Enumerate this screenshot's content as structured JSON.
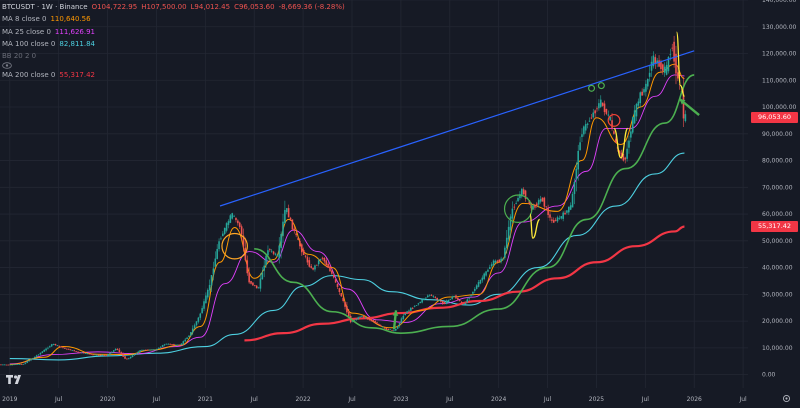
{
  "header": {
    "symbol": "BTCUSDT · 1W · Binance",
    "ohlc": {
      "open": "O104,722.95",
      "high": "H107,500.00",
      "low": "L94,012.45",
      "close": "C96,053.60",
      "change": "-8,669.36 (-8.28%)"
    }
  },
  "indicators": [
    {
      "name": "MA 8 close 0",
      "value": "110,640.56",
      "color": "#ff9800"
    },
    {
      "name": "MA 25 close 0",
      "value": "111,626.91",
      "color": "#e040fb"
    },
    {
      "name": "MA 100 close 0",
      "value": "82,811.84",
      "color": "#4dd0e1"
    },
    {
      "name": "MA 200 close 0",
      "value": "55,317.42",
      "color": "#f23645"
    }
  ],
  "bb_indicator": {
    "name": "BB 20 2 0"
  },
  "price_tags": [
    {
      "label": "96,053.60",
      "value": 96053.6,
      "color": "#f23645"
    },
    {
      "label": "55,317.42",
      "value": 55317.42,
      "color": "#f23645"
    }
  ],
  "colors": {
    "up": "#26a69a",
    "down": "#ef5350",
    "trendline": "#2962ff",
    "arc": "#4caf50",
    "circle_orange": "#ffa726",
    "circle_yellow": "#ffeb3b",
    "circle_red": "#f44336",
    "arrow": "#4caf50",
    "ma8": "#ff9800",
    "ma25": "#e040fb",
    "ma100": "#4dd0e1",
    "ma200": "#f23645"
  },
  "icons": {
    "logo": "tradingview-logo-icon",
    "settings": "gear-icon",
    "visibility": "eye-icon"
  },
  "chart_data": {
    "type": "candlestick",
    "title": "BTCUSDT · 1W · Binance",
    "ylim": [
      -5000,
      140000
    ],
    "xlim": [
      2018.9,
      2026.55
    ],
    "y_ticks": [
      {
        "value": 0,
        "label": "0.00"
      },
      {
        "value": 10000,
        "label": "10,000.00"
      },
      {
        "value": 20000,
        "label": "20,000.00"
      },
      {
        "value": 30000,
        "label": "30,000.00"
      },
      {
        "value": 40000,
        "label": "40,000.00"
      },
      {
        "value": 50000,
        "label": "50,000.00"
      },
      {
        "value": 60000,
        "label": "60,000.00"
      },
      {
        "value": 70000,
        "label": "70,000.00"
      },
      {
        "value": 80000,
        "label": "80,000.00"
      },
      {
        "value": 90000,
        "label": "90,000.00"
      },
      {
        "value": 100000,
        "label": "100,000.00"
      },
      {
        "value": 110000,
        "label": "110,000.00"
      },
      {
        "value": 120000,
        "label": "120,000.00"
      },
      {
        "value": 130000,
        "label": "130,000.00"
      },
      {
        "value": 140000,
        "label": "140,000.00"
      }
    ],
    "x_ticks": [
      {
        "t": 2019.0,
        "label": "2019"
      },
      {
        "t": 2019.5,
        "label": "Jul"
      },
      {
        "t": 2020.0,
        "label": "2020"
      },
      {
        "t": 2020.5,
        "label": "Jul"
      },
      {
        "t": 2021.0,
        "label": "2021"
      },
      {
        "t": 2021.5,
        "label": "Jul"
      },
      {
        "t": 2022.0,
        "label": "2022"
      },
      {
        "t": 2022.5,
        "label": "Jul"
      },
      {
        "t": 2023.0,
        "label": "2023"
      },
      {
        "t": 2023.5,
        "label": "Jul"
      },
      {
        "t": 2024.0,
        "label": "2024"
      },
      {
        "t": 2024.5,
        "label": "Jul"
      },
      {
        "t": 2025.0,
        "label": "2025"
      },
      {
        "t": 2025.5,
        "label": "Jul"
      },
      {
        "t": 2026.0,
        "label": "2026"
      },
      {
        "t": 2026.5,
        "label": "Jul"
      }
    ],
    "price_path": [
      [
        2018.9,
        3800
      ],
      [
        2019.0,
        3700
      ],
      [
        2019.15,
        4000
      ],
      [
        2019.3,
        7500
      ],
      [
        2019.45,
        11500
      ],
      [
        2019.55,
        10000
      ],
      [
        2019.7,
        8500
      ],
      [
        2019.85,
        7500
      ],
      [
        2020.0,
        7200
      ],
      [
        2020.1,
        9800
      ],
      [
        2020.2,
        5500
      ],
      [
        2020.35,
        9200
      ],
      [
        2020.5,
        9300
      ],
      [
        2020.6,
        11500
      ],
      [
        2020.75,
        11000
      ],
      [
        2020.85,
        15000
      ],
      [
        2020.95,
        22000
      ],
      [
        2021.05,
        33000
      ],
      [
        2021.15,
        50000
      ],
      [
        2021.28,
        60000
      ],
      [
        2021.37,
        55000
      ],
      [
        2021.45,
        35000
      ],
      [
        2021.55,
        32000
      ],
      [
        2021.65,
        47000
      ],
      [
        2021.75,
        44000
      ],
      [
        2021.83,
        63000
      ],
      [
        2021.9,
        55000
      ],
      [
        2022.0,
        46000
      ],
      [
        2022.1,
        39000
      ],
      [
        2022.2,
        44000
      ],
      [
        2022.3,
        38000
      ],
      [
        2022.4,
        29000
      ],
      [
        2022.5,
        19500
      ],
      [
        2022.6,
        22000
      ],
      [
        2022.75,
        19500
      ],
      [
        2022.85,
        17000
      ],
      [
        2022.95,
        16500
      ],
      [
        2023.05,
        23000
      ],
      [
        2023.2,
        27000
      ],
      [
        2023.3,
        30000
      ],
      [
        2023.45,
        26500
      ],
      [
        2023.55,
        29500
      ],
      [
        2023.65,
        26000
      ],
      [
        2023.8,
        34000
      ],
      [
        2023.95,
        42000
      ],
      [
        2024.05,
        43000
      ],
      [
        2024.15,
        62000
      ],
      [
        2024.25,
        69000
      ],
      [
        2024.35,
        62000
      ],
      [
        2024.45,
        66000
      ],
      [
        2024.55,
        57000
      ],
      [
        2024.65,
        59000
      ],
      [
        2024.75,
        63000
      ],
      [
        2024.85,
        90000
      ],
      [
        2024.95,
        96000
      ],
      [
        2025.05,
        102000
      ],
      [
        2025.15,
        95000
      ],
      [
        2025.22,
        84000
      ],
      [
        2025.3,
        80000
      ],
      [
        2025.38,
        95000
      ],
      [
        2025.45,
        104000
      ],
      [
        2025.52,
        108000
      ],
      [
        2025.58,
        118000
      ],
      [
        2025.65,
        116000
      ],
      [
        2025.72,
        113000
      ],
      [
        2025.78,
        124000
      ],
      [
        2025.84,
        110000
      ],
      [
        2025.88,
        104700
      ],
      [
        2025.9,
        96053
      ]
    ],
    "ma8": [
      [
        2019.0,
        3800
      ],
      [
        2019.35,
        6500
      ],
      [
        2019.55,
        10500
      ],
      [
        2019.9,
        7600
      ],
      [
        2020.2,
        7500
      ],
      [
        2020.45,
        9200
      ],
      [
        2020.75,
        11000
      ],
      [
        2020.95,
        18000
      ],
      [
        2021.15,
        42000
      ],
      [
        2021.3,
        55000
      ],
      [
        2021.5,
        36000
      ],
      [
        2021.7,
        43000
      ],
      [
        2021.85,
        58000
      ],
      [
        2022.05,
        45000
      ],
      [
        2022.3,
        40000
      ],
      [
        2022.5,
        23000
      ],
      [
        2022.9,
        17500
      ],
      [
        2023.2,
        24000
      ],
      [
        2023.5,
        29000
      ],
      [
        2023.8,
        30000
      ],
      [
        2024.0,
        42000
      ],
      [
        2024.25,
        64000
      ],
      [
        2024.6,
        61000
      ],
      [
        2024.85,
        80000
      ],
      [
        2025.0,
        96000
      ],
      [
        2025.25,
        86000
      ],
      [
        2025.45,
        100000
      ],
      [
        2025.65,
        113000
      ],
      [
        2025.8,
        116000
      ],
      [
        2025.9,
        110640
      ]
    ],
    "ma25": [
      [
        2019.0,
        4000
      ],
      [
        2019.45,
        7500
      ],
      [
        2019.9,
        8500
      ],
      [
        2020.3,
        7800
      ],
      [
        2020.7,
        10500
      ],
      [
        2020.95,
        14000
      ],
      [
        2021.2,
        34000
      ],
      [
        2021.45,
        46000
      ],
      [
        2021.7,
        42000
      ],
      [
        2021.9,
        54000
      ],
      [
        2022.15,
        46000
      ],
      [
        2022.45,
        32000
      ],
      [
        2022.75,
        20500
      ],
      [
        2023.05,
        19500
      ],
      [
        2023.4,
        26500
      ],
      [
        2023.75,
        29000
      ],
      [
        2024.0,
        38000
      ],
      [
        2024.25,
        57000
      ],
      [
        2024.6,
        63000
      ],
      [
        2024.9,
        76000
      ],
      [
        2025.1,
        92000
      ],
      [
        2025.35,
        92000
      ],
      [
        2025.6,
        104000
      ],
      [
        2025.8,
        112000
      ],
      [
        2025.9,
        111626
      ]
    ],
    "ma100": [
      [
        2019.0,
        6000
      ],
      [
        2019.5,
        5500
      ],
      [
        2020.0,
        7000
      ],
      [
        2020.5,
        8000
      ],
      [
        2021.0,
        10500
      ],
      [
        2021.3,
        15000
      ],
      [
        2021.7,
        24000
      ],
      [
        2022.0,
        33000
      ],
      [
        2022.3,
        37000
      ],
      [
        2022.6,
        35500
      ],
      [
        2022.9,
        31000
      ],
      [
        2023.3,
        28000
      ],
      [
        2023.7,
        26000
      ],
      [
        2024.0,
        30000
      ],
      [
        2024.4,
        40000
      ],
      [
        2024.8,
        52000
      ],
      [
        2025.2,
        63000
      ],
      [
        2025.6,
        75000
      ],
      [
        2025.9,
        82811
      ]
    ],
    "ma200": [
      [
        2021.4,
        12800
      ],
      [
        2021.8,
        15500
      ],
      [
        2022.2,
        19000
      ],
      [
        2022.6,
        21000
      ],
      [
        2023.0,
        23000
      ],
      [
        2023.4,
        25000
      ],
      [
        2023.8,
        27500
      ],
      [
        2024.2,
        31000
      ],
      [
        2024.6,
        36000
      ],
      [
        2025.0,
        42000
      ],
      [
        2025.4,
        48000
      ],
      [
        2025.8,
        53500
      ],
      [
        2025.9,
        55317
      ]
    ],
    "annotations": {
      "trendline": [
        [
          2021.15,
          63000
        ],
        [
          2026.0,
          121000
        ]
      ],
      "arc": [
        [
          2021.5,
          47000
        ],
        [
          2021.9,
          34500
        ],
        [
          2022.3,
          23500
        ],
        [
          2022.7,
          17500
        ],
        [
          2023.0,
          15500
        ],
        [
          2023.5,
          18000
        ],
        [
          2024.0,
          24500
        ],
        [
          2024.5,
          40000
        ],
        [
          2024.9,
          58000
        ],
        [
          2025.3,
          77000
        ],
        [
          2025.7,
          94000
        ],
        [
          2026.0,
          112000
        ]
      ],
      "circles": [
        {
          "t": 2021.3,
          "v": 48000,
          "r": 0.13,
          "color": "circle_orange"
        },
        {
          "t": 2024.2,
          "v": 62000,
          "r": 0.14,
          "color": "arc"
        },
        {
          "t": 2025.18,
          "v": 95000,
          "r": 0.06,
          "color": "circle_red"
        },
        {
          "t": 2024.95,
          "v": 107000,
          "r": 0.03,
          "color": "arc"
        },
        {
          "t": 2025.05,
          "v": 108000,
          "r": 0.03,
          "color": "arc"
        }
      ],
      "yellow_dips": [
        [
          [
            2024.32,
            60000
          ],
          [
            2024.35,
            51000
          ],
          [
            2024.42,
            58000
          ]
        ],
        [
          [
            2025.18,
            92000
          ],
          [
            2025.25,
            81000
          ],
          [
            2025.32,
            92000
          ]
        ],
        [
          [
            2025.82,
            128000
          ],
          [
            2025.86,
            108000
          ],
          [
            2025.9,
            104000
          ]
        ]
      ],
      "arrows": [
        {
          "from": [
            2026.05,
            97000
          ],
          "to": [
            2025.85,
            103000
          ]
        },
        {
          "from": [
            2022.93,
            17000
          ],
          "to": [
            2022.95,
            24000
          ]
        }
      ]
    }
  }
}
